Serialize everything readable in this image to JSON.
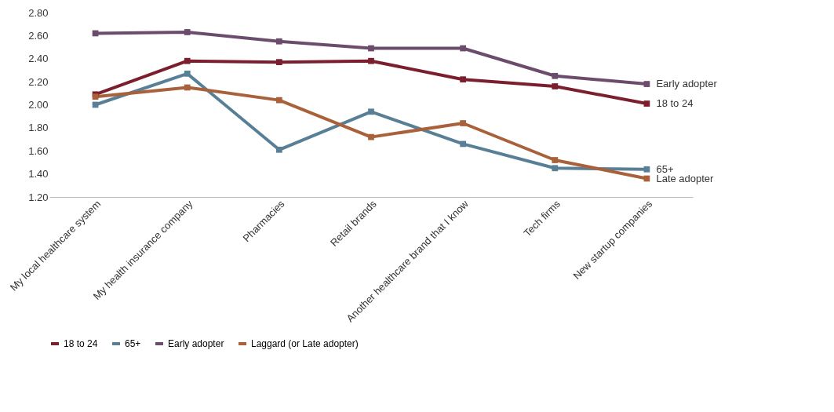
{
  "chart_data": {
    "type": "line",
    "categories": [
      "My local healthcare system",
      "My health insurance company",
      "Pharmacies",
      "Retail brands",
      "Another healthcare brand that I know",
      "Tech firms",
      "New startup companies"
    ],
    "series": [
      {
        "name": "18 to 24",
        "color": "#7b1f2e",
        "values": [
          2.09,
          2.38,
          2.37,
          2.38,
          2.22,
          2.16,
          2.01
        ]
      },
      {
        "name": "65+",
        "color": "#587f96",
        "values": [
          2.0,
          2.27,
          1.61,
          1.94,
          1.66,
          1.45,
          1.44
        ]
      },
      {
        "name": "Early adopter",
        "color": "#6b4c6c",
        "values": [
          2.62,
          2.63,
          2.55,
          2.49,
          2.49,
          2.25,
          2.18
        ]
      },
      {
        "name": "Laggard (or Late adopter)",
        "color": "#a8613a",
        "values": [
          2.07,
          2.15,
          2.04,
          1.72,
          1.84,
          1.52,
          1.36
        ]
      }
    ],
    "ylim": [
      1.2,
      2.8
    ],
    "yticks": [
      {
        "value": 1.2,
        "label": "1.20"
      },
      {
        "value": 1.4,
        "label": "1.40"
      },
      {
        "value": 1.6,
        "label": "1.60"
      },
      {
        "value": 1.8,
        "label": "1.80"
      },
      {
        "value": 2.0,
        "label": "2.00"
      },
      {
        "value": 2.2,
        "label": "2.20"
      },
      {
        "value": 2.4,
        "label": "2.40"
      },
      {
        "value": 2.6,
        "label": "2.60"
      },
      {
        "value": 2.8,
        "label": "2.80"
      }
    ],
    "annotations": [
      {
        "text": "Early adopter",
        "x": "New startup companies",
        "y": 2.18
      },
      {
        "text": "18 to 24",
        "x": "New startup companies",
        "y": 2.01
      },
      {
        "text": "65+",
        "x": "New startup companies",
        "y": 1.44
      },
      {
        "text": "Late adopter",
        "x": "New startup companies",
        "y": 1.36
      }
    ],
    "marker": "square",
    "legend": "bottom",
    "grid": false,
    "line_style": "solid"
  }
}
